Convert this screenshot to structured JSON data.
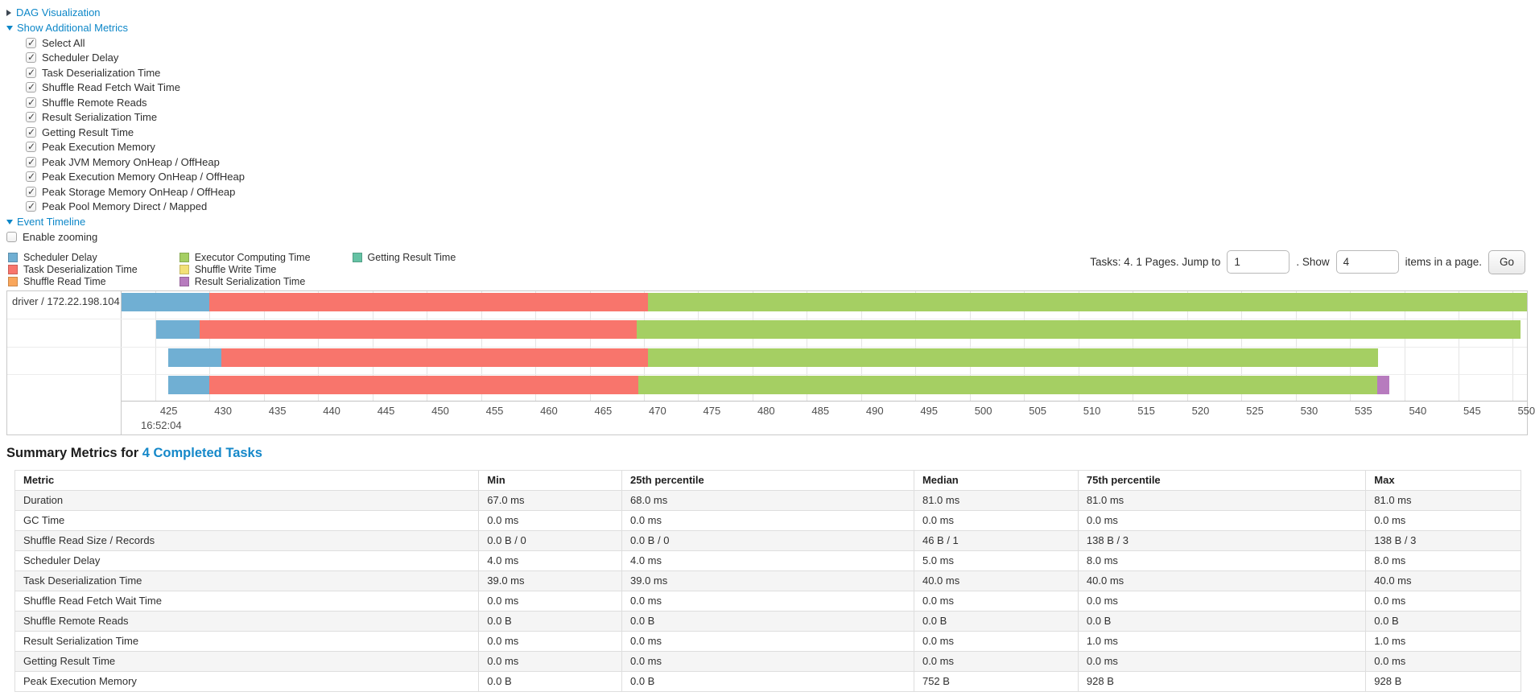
{
  "controls": {
    "dag_visualization_label": "DAG Visualization",
    "show_additional_metrics_label": "Show Additional Metrics",
    "metric_checkboxes": [
      {
        "label": "Select All",
        "checked": true
      },
      {
        "label": "Scheduler Delay",
        "checked": true
      },
      {
        "label": "Task Deserialization Time",
        "checked": true
      },
      {
        "label": "Shuffle Read Fetch Wait Time",
        "checked": true
      },
      {
        "label": "Shuffle Remote Reads",
        "checked": true
      },
      {
        "label": "Result Serialization Time",
        "checked": true
      },
      {
        "label": "Getting Result Time",
        "checked": true
      },
      {
        "label": "Peak Execution Memory",
        "checked": true
      },
      {
        "label": "Peak JVM Memory OnHeap / OffHeap",
        "checked": true
      },
      {
        "label": "Peak Execution Memory OnHeap / OffHeap",
        "checked": true
      },
      {
        "label": "Peak Storage Memory OnHeap / OffHeap",
        "checked": true
      },
      {
        "label": "Peak Pool Memory Direct / Mapped",
        "checked": true
      }
    ],
    "event_timeline_label": "Event Timeline",
    "enable_zooming": {
      "label": "Enable zooming",
      "checked": false
    }
  },
  "legend": [
    {
      "key": "scheduler_delay",
      "label": "Scheduler Delay"
    },
    {
      "key": "task_deserialization",
      "label": "Task Deserialization Time"
    },
    {
      "key": "shuffle_read",
      "label": "Shuffle Read Time"
    },
    {
      "key": "executor_computing",
      "label": "Executor Computing Time"
    },
    {
      "key": "shuffle_write",
      "label": "Shuffle Write Time"
    },
    {
      "key": "result_serialization",
      "label": "Result Serialization Time"
    },
    {
      "key": "getting_result",
      "label": "Getting Result Time"
    }
  ],
  "pagination": {
    "tasks_text": "Tasks: 4. 1 Pages. Jump to",
    "jump_value": "1",
    "show_text": ". Show",
    "show_value": "4",
    "items_text": "items in a page.",
    "go_label": "Go"
  },
  "chart_data": {
    "type": "timeline",
    "group_label": "driver / 172.22.198.104",
    "axis": {
      "domain_ms": [
        421.9,
        551.3
      ],
      "ticks": [
        425,
        430,
        435,
        440,
        445,
        450,
        455,
        460,
        465,
        470,
        475,
        480,
        485,
        490,
        495,
        500,
        505,
        510,
        515,
        520,
        525,
        530,
        535,
        540,
        545,
        550
      ],
      "time_label": "16:52:04"
    },
    "colors": {
      "scheduler_delay": "#70AFD3",
      "task_deserialization": "#F8756C",
      "shuffle_read": "#F9A65B",
      "executor_computing": "#A5CF63",
      "shuffle_write": "#F2E077",
      "result_serialization": "#B77BBE",
      "getting_result": "#65C2A4"
    },
    "tasks": [
      {
        "segments": [
          {
            "type": "scheduler_delay",
            "start": 421.9,
            "end": 430.0
          },
          {
            "type": "task_deserialization",
            "start": 430.0,
            "end": 470.4
          },
          {
            "type": "executor_computing",
            "start": 470.4,
            "end": 551.3
          }
        ]
      },
      {
        "segments": [
          {
            "type": "scheduler_delay",
            "start": 425.1,
            "end": 429.1
          },
          {
            "type": "task_deserialization",
            "start": 429.1,
            "end": 469.3
          },
          {
            "type": "executor_computing",
            "start": 469.3,
            "end": 550.7
          }
        ]
      },
      {
        "segments": [
          {
            "type": "scheduler_delay",
            "start": 426.2,
            "end": 431.1
          },
          {
            "type": "task_deserialization",
            "start": 431.1,
            "end": 470.4
          },
          {
            "type": "executor_computing",
            "start": 470.4,
            "end": 537.6
          }
        ]
      },
      {
        "segments": [
          {
            "type": "scheduler_delay",
            "start": 426.2,
            "end": 430.0
          },
          {
            "type": "task_deserialization",
            "start": 430.0,
            "end": 469.5
          },
          {
            "type": "executor_computing",
            "start": 469.5,
            "end": 537.5
          },
          {
            "type": "result_serialization",
            "start": 537.5,
            "end": 538.6
          }
        ]
      }
    ]
  },
  "summary": {
    "heading_prefix": "Summary Metrics for ",
    "heading_link": "4 Completed Tasks",
    "table": {
      "headers": [
        "Metric",
        "Min",
        "25th percentile",
        "Median",
        "75th percentile",
        "Max"
      ],
      "rows": [
        {
          "metric": "Duration",
          "values": [
            "67.0 ms",
            "68.0 ms",
            "81.0 ms",
            "81.0 ms",
            "81.0 ms"
          ]
        },
        {
          "metric": "GC Time",
          "values": [
            "0.0 ms",
            "0.0 ms",
            "0.0 ms",
            "0.0 ms",
            "0.0 ms"
          ]
        },
        {
          "metric": "Shuffle Read Size / Records",
          "values": [
            "0.0 B / 0",
            "0.0 B / 0",
            "46 B / 1",
            "138 B / 3",
            "138 B / 3"
          ]
        },
        {
          "metric": "Scheduler Delay",
          "values": [
            "4.0 ms",
            "4.0 ms",
            "5.0 ms",
            "8.0 ms",
            "8.0 ms"
          ]
        },
        {
          "metric": "Task Deserialization Time",
          "values": [
            "39.0 ms",
            "39.0 ms",
            "40.0 ms",
            "40.0 ms",
            "40.0 ms"
          ]
        },
        {
          "metric": "Shuffle Read Fetch Wait Time",
          "values": [
            "0.0 ms",
            "0.0 ms",
            "0.0 ms",
            "0.0 ms",
            "0.0 ms"
          ]
        },
        {
          "metric": "Shuffle Remote Reads",
          "values": [
            "0.0 B",
            "0.0 B",
            "0.0 B",
            "0.0 B",
            "0.0 B"
          ]
        },
        {
          "metric": "Result Serialization Time",
          "values": [
            "0.0 ms",
            "0.0 ms",
            "0.0 ms",
            "1.0 ms",
            "1.0 ms"
          ]
        },
        {
          "metric": "Getting Result Time",
          "values": [
            "0.0 ms",
            "0.0 ms",
            "0.0 ms",
            "0.0 ms",
            "0.0 ms"
          ]
        },
        {
          "metric": "Peak Execution Memory",
          "values": [
            "0.0 B",
            "0.0 B",
            "752 B",
            "928 B",
            "928 B"
          ]
        }
      ]
    }
  }
}
